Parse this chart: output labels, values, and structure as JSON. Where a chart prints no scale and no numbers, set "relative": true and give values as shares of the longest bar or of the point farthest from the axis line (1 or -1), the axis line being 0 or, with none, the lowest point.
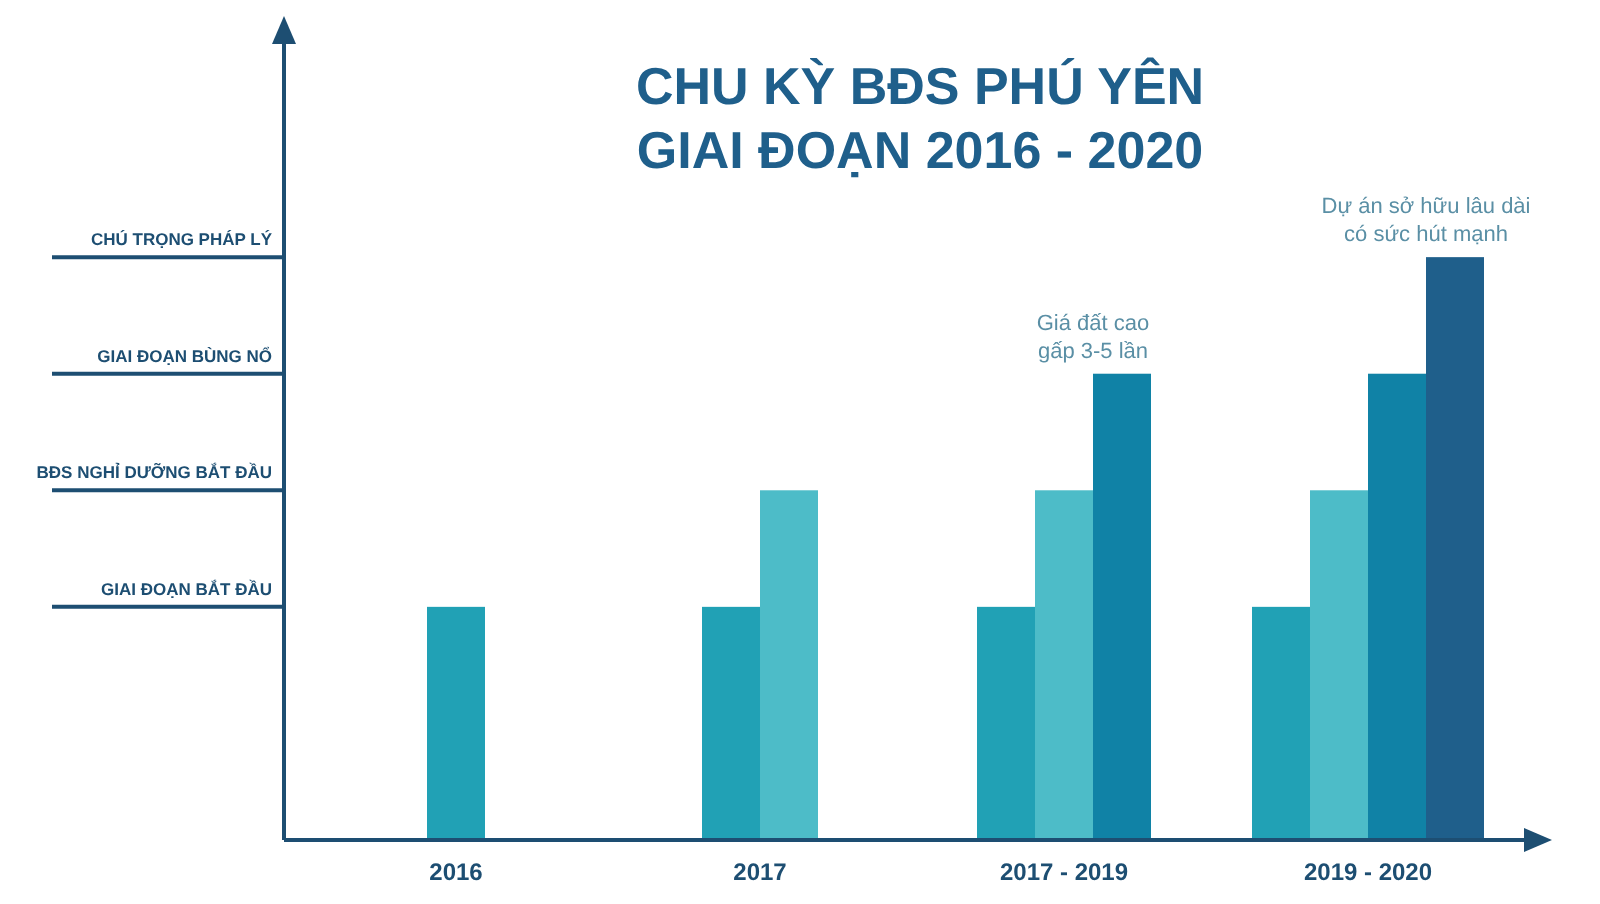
{
  "chart_data": {
    "type": "bar",
    "title": "CHU KỲ BĐS PHÚ YÊN",
    "subtitle": "GIAI ĐOẠN 2016 - 2020",
    "categories": [
      "2016",
      "2017",
      "2017 - 2019",
      "2019 - 2020"
    ],
    "series": [
      {
        "color": "#21a1b5",
        "values": [
          0.4,
          0.4,
          0.4,
          0.4
        ]
      },
      {
        "color": "#4dbcc8",
        "values": [
          null,
          0.6,
          0.6,
          0.6
        ]
      },
      {
        "color": "#1082a6",
        "values": [
          null,
          null,
          0.8,
          0.8
        ]
      },
      {
        "color": "#1f5f8b",
        "values": [
          null,
          null,
          null,
          1
        ]
      }
    ],
    "relative": true,
    "ref_lines": [
      {
        "axis": "y",
        "value": 0.4,
        "label": "GIAI ĐOẠN BẮT ĐẦU",
        "color": "#1d4e72"
      },
      {
        "axis": "y",
        "value": 0.6,
        "label": "BĐS NGHỈ DƯỠNG BẮT ĐẦU",
        "color": "#1d4e72"
      },
      {
        "axis": "y",
        "value": 0.8,
        "label": "GIAI ĐOẠN BÙNG NỔ",
        "color": "#1d4e72"
      },
      {
        "axis": "y",
        "value": 1,
        "label": "CHÚ TRỌNG PHÁP LÝ",
        "color": "#1d4e72"
      }
    ],
    "annotations": [
      "Giá đất cao\ngấp 3-5 lần",
      "Dự án sở hữu lâu dài\ncó sức hút mạnh"
    ]
  }
}
